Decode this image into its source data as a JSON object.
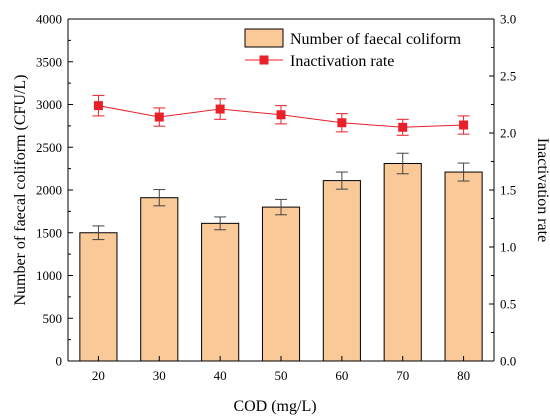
{
  "chart_data": {
    "type": "bar",
    "xlabel": "COD (mg/L)",
    "categories": [
      "20",
      "30",
      "40",
      "50",
      "60",
      "70",
      "80"
    ],
    "series": [
      {
        "name": "Number of faecal coliform",
        "kind": "bar",
        "axis": "left",
        "values": [
          1500,
          1910,
          1610,
          1800,
          2110,
          2310,
          2210
        ],
        "errors": [
          80,
          95,
          75,
          90,
          100,
          120,
          105
        ],
        "color": "#FAC998"
      },
      {
        "name": "Inactivation rate",
        "kind": "line",
        "axis": "right",
        "values": [
          2.24,
          2.14,
          2.21,
          2.16,
          2.09,
          2.05,
          2.07
        ],
        "errors": [
          0.09,
          0.08,
          0.09,
          0.08,
          0.08,
          0.07,
          0.08
        ],
        "color": "#E8202A"
      }
    ],
    "y_left": {
      "label": "Number of faecal coliform (CFU/L)",
      "ylim": [
        0,
        4000
      ],
      "ticks": [
        "0",
        "500",
        "1000",
        "1500",
        "2000",
        "2500",
        "3000",
        "3500",
        "4000"
      ]
    },
    "y_right": {
      "label": "Inactivation rate",
      "ylim": [
        0,
        3.0
      ],
      "ticks": [
        "0.0",
        "0.5",
        "1.0",
        "1.5",
        "2.0",
        "2.5",
        "3.0"
      ]
    },
    "legend_position": "top-right",
    "grid": false
  }
}
